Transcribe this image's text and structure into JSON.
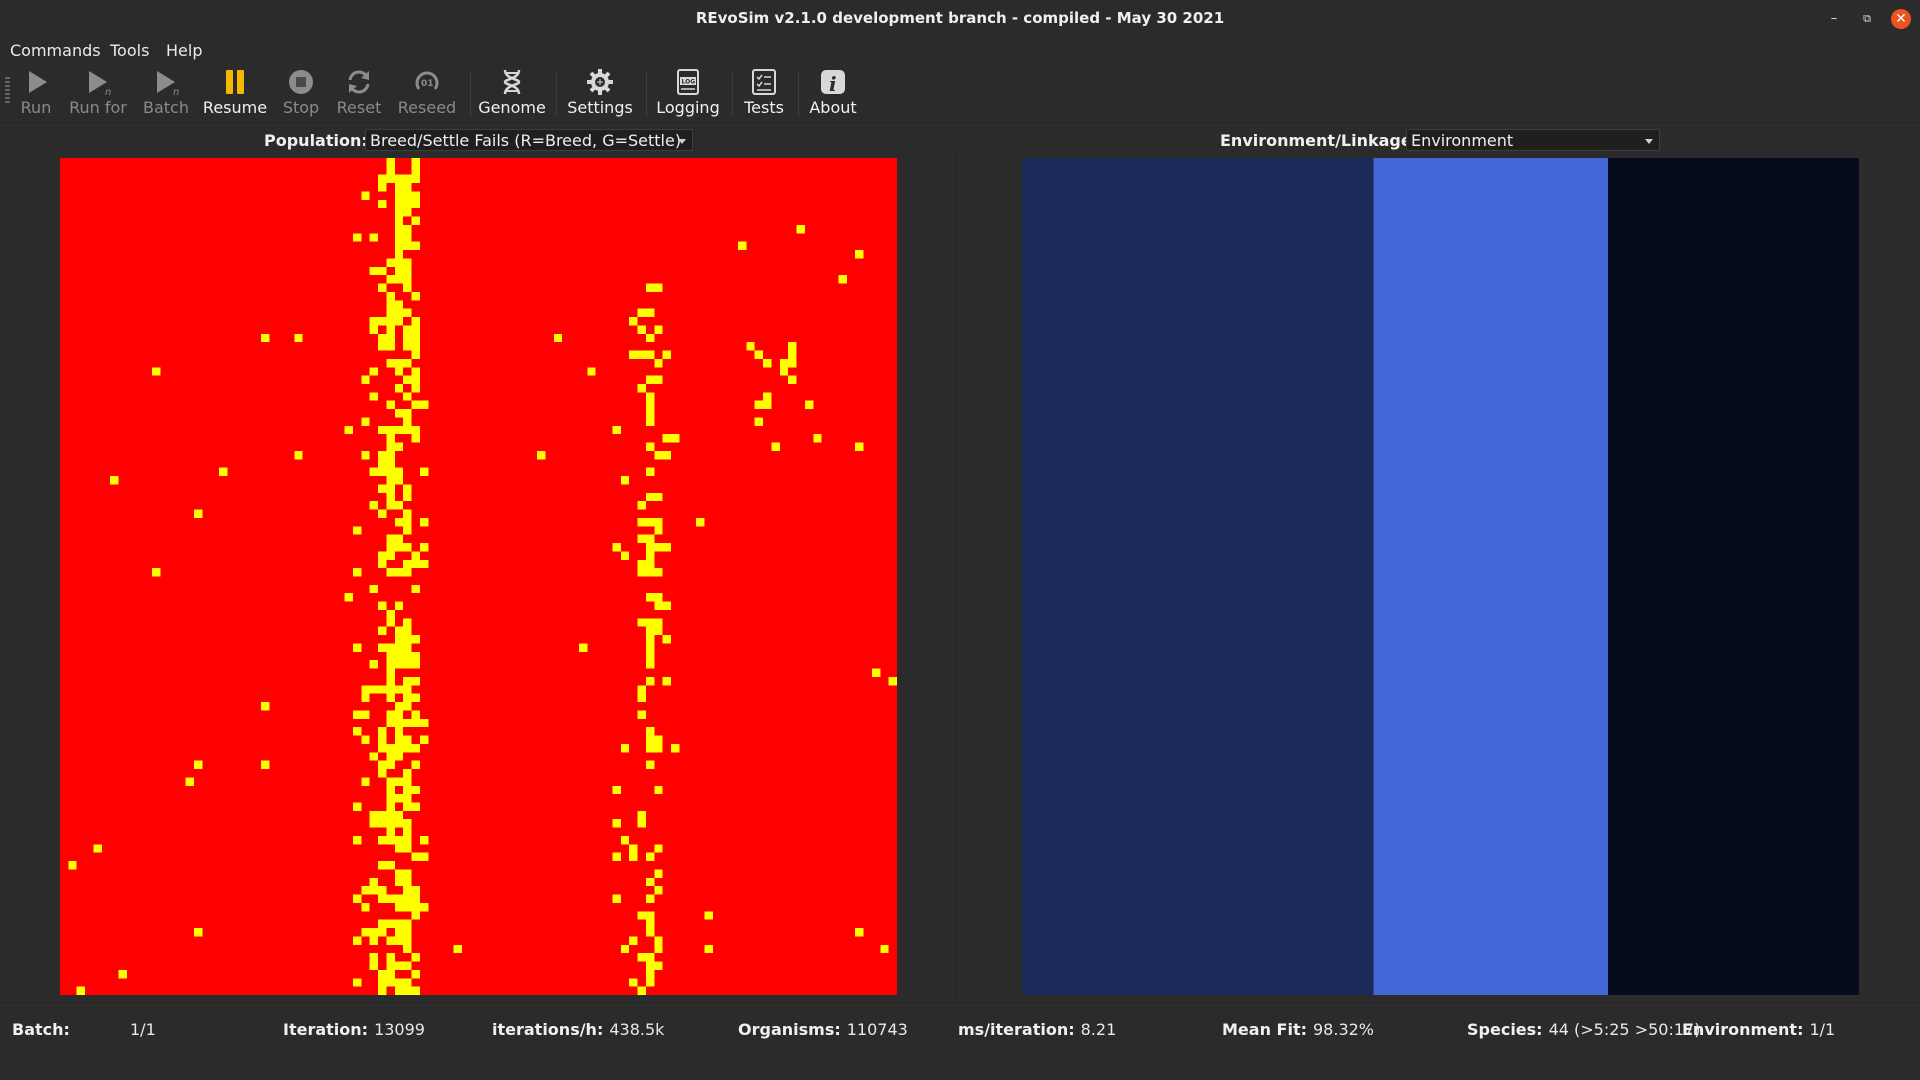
{
  "window": {
    "title": "REvoSim v2.1.0 development branch - compiled - May 30 2021",
    "minimize_glyph": "–",
    "maximize_glyph": "⧉",
    "close_glyph": "✕"
  },
  "menu": [
    "Commands",
    "Tools",
    "Help"
  ],
  "toolbar": [
    {
      "id": "run",
      "label": "Run",
      "icon": "play-icon",
      "enabled": false
    },
    {
      "id": "run-for",
      "label": "Run for",
      "icon": "play-n-icon",
      "enabled": false
    },
    {
      "id": "batch",
      "label": "Batch",
      "icon": "play-n-icon",
      "enabled": false
    },
    {
      "id": "resume",
      "label": "Resume",
      "icon": "pause-icon",
      "enabled": true
    },
    {
      "id": "stop",
      "label": "Stop",
      "icon": "stop-icon",
      "enabled": false
    },
    {
      "id": "reset",
      "label": "Reset",
      "icon": "refresh-icon",
      "enabled": false
    },
    {
      "id": "reseed",
      "label": "Reseed",
      "icon": "reseed-icon",
      "enabled": false
    },
    {
      "id": "genome",
      "label": "Genome",
      "icon": "dna-icon",
      "enabled": true
    },
    {
      "id": "settings",
      "label": "Settings",
      "icon": "gear-icon",
      "enabled": true
    },
    {
      "id": "logging",
      "label": "Logging",
      "icon": "log-icon",
      "enabled": true
    },
    {
      "id": "tests",
      "label": "Tests",
      "icon": "checklist-icon",
      "enabled": true
    },
    {
      "id": "about",
      "label": "About",
      "icon": "info-icon",
      "enabled": true
    }
  ],
  "population": {
    "label": "Population:",
    "selected": "Breed/Settle Fails (R=Breed, G=Settle)",
    "colors": {
      "background": "#ff0000",
      "cell": "#ffff00"
    }
  },
  "environment": {
    "label": "Environment/Linkage:",
    "selected": "Environment",
    "colors": {
      "band_1": "#1c2a5a",
      "band_2": "#4466d6",
      "band_3": "#050d1c"
    }
  },
  "status": {
    "batch": {
      "label": "Batch:",
      "value": "1/1"
    },
    "iteration": {
      "label": "Iteration:",
      "value": "13099"
    },
    "rate": {
      "label": "iterations/h:",
      "value": "438.5k"
    },
    "organisms": {
      "label": "Organisms:",
      "value": "110743"
    },
    "ms": {
      "label": "ms/iteration:",
      "value": "8.21"
    },
    "fit": {
      "label": "Mean Fit:",
      "value": "98.32%"
    },
    "species": {
      "label": "Species:",
      "value": "44 (>5:25 >50:17)"
    },
    "env": {
      "label": "Environment:",
      "value": "1/1"
    }
  }
}
